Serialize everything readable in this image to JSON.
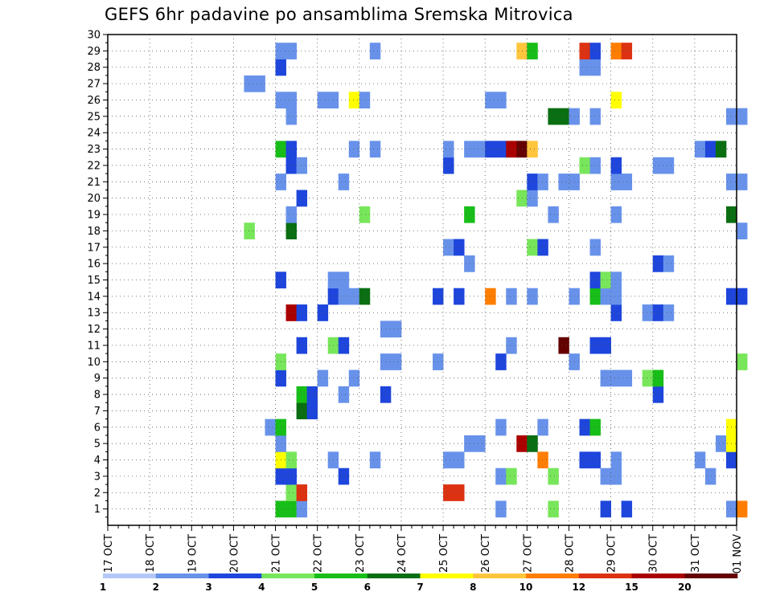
{
  "chart_data": {
    "type": "heatmap",
    "title": "GEFS 6hr padavine po ansamblima Sremska Mitrovica",
    "x_tick_labels": [
      "17 OCT",
      "18 OCT",
      "19 OCT",
      "20 OCT",
      "21 OCT",
      "22 OCT",
      "23 OCT",
      "24 OCT",
      "25 OCT",
      "26 OCT",
      "27 OCT",
      "28 OCT",
      "29 OCT",
      "30 OCT",
      "31 OCT",
      "01 NOV"
    ],
    "y_tick_labels": [
      "1",
      "2",
      "3",
      "4",
      "5",
      "6",
      "7",
      "8",
      "9",
      "10",
      "11",
      "12",
      "13",
      "14",
      "15",
      "16",
      "17",
      "18",
      "19",
      "20",
      "21",
      "22",
      "23",
      "24",
      "25",
      "26",
      "27",
      "28",
      "29",
      "30"
    ],
    "y_range": [
      0,
      30
    ],
    "x_range_days": [
      0,
      15
    ],
    "steps_per_day": 4,
    "grid": true,
    "legend_position": "bottom",
    "legend_thresholds": [
      1,
      2,
      3,
      4,
      5,
      6,
      7,
      8,
      10,
      12,
      15,
      20
    ],
    "legend_labels": [
      "1",
      "2",
      "3",
      "4",
      "5",
      "6",
      "7",
      "8",
      "10",
      "12",
      "15",
      "20"
    ],
    "colors": [
      "#b4c8f8",
      "#6892ea",
      "#1e46dc",
      "#78e65a",
      "#18be18",
      "#0a6e12",
      "#ffff00",
      "#ffc53c",
      "#ff7e00",
      "#dc3212",
      "#aa0000",
      "#640000"
    ],
    "cells": [
      [
        1,
        16,
        4
      ],
      [
        1,
        17,
        4
      ],
      [
        1,
        18,
        1
      ],
      [
        1,
        37,
        1
      ],
      [
        1,
        42,
        3
      ],
      [
        1,
        47,
        2
      ],
      [
        1,
        49,
        2
      ],
      [
        1,
        59,
        1
      ],
      [
        1,
        60,
        8
      ],
      [
        2,
        17,
        3
      ],
      [
        2,
        18,
        9
      ],
      [
        2,
        32,
        9
      ],
      [
        2,
        33,
        9
      ],
      [
        3,
        16,
        2
      ],
      [
        3,
        17,
        2
      ],
      [
        3,
        22,
        2
      ],
      [
        3,
        37,
        1
      ],
      [
        3,
        38,
        3
      ],
      [
        3,
        42,
        3
      ],
      [
        3,
        47,
        1
      ],
      [
        3,
        48,
        1
      ],
      [
        3,
        57,
        1
      ],
      [
        4,
        16,
        6
      ],
      [
        4,
        17,
        3
      ],
      [
        4,
        21,
        1
      ],
      [
        4,
        25,
        1
      ],
      [
        4,
        32,
        1
      ],
      [
        4,
        33,
        1
      ],
      [
        4,
        41,
        8
      ],
      [
        4,
        45,
        2
      ],
      [
        4,
        46,
        2
      ],
      [
        4,
        48,
        1
      ],
      [
        4,
        56,
        1
      ],
      [
        4,
        59,
        2
      ],
      [
        5,
        16,
        1
      ],
      [
        5,
        34,
        1
      ],
      [
        5,
        35,
        1
      ],
      [
        5,
        39,
        10
      ],
      [
        5,
        40,
        5
      ],
      [
        5,
        58,
        1
      ],
      [
        5,
        59,
        6
      ],
      [
        6,
        15,
        1
      ],
      [
        6,
        16,
        4
      ],
      [
        6,
        37,
        1
      ],
      [
        6,
        41,
        1
      ],
      [
        6,
        45,
        2
      ],
      [
        6,
        46,
        4
      ],
      [
        6,
        59,
        6
      ],
      [
        7,
        18,
        5
      ],
      [
        7,
        19,
        2
      ],
      [
        8,
        18,
        4
      ],
      [
        8,
        19,
        2
      ],
      [
        8,
        22,
        1
      ],
      [
        8,
        26,
        2
      ],
      [
        8,
        52,
        2
      ],
      [
        9,
        16,
        2
      ],
      [
        9,
        20,
        1
      ],
      [
        9,
        23,
        1
      ],
      [
        9,
        47,
        1
      ],
      [
        9,
        48,
        1
      ],
      [
        9,
        49,
        1
      ],
      [
        9,
        51,
        3
      ],
      [
        9,
        52,
        4
      ],
      [
        10,
        16,
        3
      ],
      [
        10,
        26,
        1
      ],
      [
        10,
        27,
        1
      ],
      [
        10,
        31,
        1
      ],
      [
        10,
        37,
        2
      ],
      [
        10,
        44,
        1
      ],
      [
        10,
        60,
        3
      ],
      [
        11,
        18,
        2
      ],
      [
        11,
        21,
        3
      ],
      [
        11,
        22,
        2
      ],
      [
        11,
        38,
        1
      ],
      [
        11,
        43,
        11
      ],
      [
        11,
        46,
        2
      ],
      [
        11,
        47,
        2
      ],
      [
        12,
        26,
        1
      ],
      [
        12,
        27,
        1
      ],
      [
        13,
        17,
        10
      ],
      [
        13,
        18,
        2
      ],
      [
        13,
        20,
        2
      ],
      [
        13,
        48,
        2
      ],
      [
        13,
        51,
        1
      ],
      [
        13,
        52,
        2
      ],
      [
        13,
        53,
        1
      ],
      [
        14,
        21,
        2
      ],
      [
        14,
        22,
        1
      ],
      [
        14,
        23,
        1
      ],
      [
        14,
        24,
        5
      ],
      [
        14,
        31,
        2
      ],
      [
        14,
        33,
        2
      ],
      [
        14,
        36,
        8
      ],
      [
        14,
        38,
        1
      ],
      [
        14,
        40,
        1
      ],
      [
        14,
        44,
        1
      ],
      [
        14,
        46,
        4
      ],
      [
        14,
        47,
        1
      ],
      [
        14,
        48,
        1
      ],
      [
        14,
        59,
        2
      ],
      [
        14,
        60,
        2
      ],
      [
        15,
        16,
        2
      ],
      [
        15,
        21,
        1
      ],
      [
        15,
        22,
        1
      ],
      [
        15,
        46,
        2
      ],
      [
        15,
        47,
        3
      ],
      [
        15,
        48,
        1
      ],
      [
        16,
        34,
        1
      ],
      [
        16,
        52,
        2
      ],
      [
        16,
        53,
        1
      ],
      [
        17,
        32,
        1
      ],
      [
        17,
        33,
        2
      ],
      [
        17,
        40,
        3
      ],
      [
        17,
        41,
        2
      ],
      [
        17,
        46,
        1
      ],
      [
        18,
        13,
        3
      ],
      [
        18,
        17,
        5
      ],
      [
        18,
        60,
        1
      ],
      [
        19,
        17,
        1
      ],
      [
        19,
        24,
        3
      ],
      [
        19,
        34,
        4
      ],
      [
        19,
        42,
        1
      ],
      [
        19,
        48,
        1
      ],
      [
        19,
        59,
        5
      ],
      [
        20,
        18,
        2
      ],
      [
        20,
        39,
        3
      ],
      [
        20,
        40,
        1
      ],
      [
        21,
        16,
        1
      ],
      [
        21,
        22,
        1
      ],
      [
        21,
        40,
        2
      ],
      [
        21,
        41,
        1
      ],
      [
        21,
        43,
        1
      ],
      [
        21,
        44,
        1
      ],
      [
        21,
        48,
        1
      ],
      [
        21,
        49,
        1
      ],
      [
        21,
        59,
        1
      ],
      [
        21,
        60,
        1
      ],
      [
        22,
        17,
        2
      ],
      [
        22,
        18,
        1
      ],
      [
        22,
        32,
        2
      ],
      [
        22,
        45,
        3
      ],
      [
        22,
        46,
        1
      ],
      [
        22,
        48,
        2
      ],
      [
        22,
        52,
        1
      ],
      [
        22,
        53,
        1
      ],
      [
        23,
        16,
        4
      ],
      [
        23,
        17,
        2
      ],
      [
        23,
        23,
        1
      ],
      [
        23,
        25,
        1
      ],
      [
        23,
        32,
        1
      ],
      [
        23,
        34,
        1
      ],
      [
        23,
        35,
        1
      ],
      [
        23,
        36,
        2
      ],
      [
        23,
        37,
        2
      ],
      [
        23,
        38,
        10
      ],
      [
        23,
        39,
        11
      ],
      [
        23,
        40,
        7
      ],
      [
        23,
        56,
        1
      ],
      [
        23,
        57,
        2
      ],
      [
        23,
        58,
        5
      ],
      [
        25,
        17,
        1
      ],
      [
        25,
        42,
        5
      ],
      [
        25,
        43,
        5
      ],
      [
        25,
        44,
        1
      ],
      [
        25,
        46,
        1
      ],
      [
        25,
        59,
        1
      ],
      [
        25,
        60,
        1
      ],
      [
        26,
        16,
        1
      ],
      [
        26,
        17,
        1
      ],
      [
        26,
        20,
        1
      ],
      [
        26,
        21,
        1
      ],
      [
        26,
        23,
        6
      ],
      [
        26,
        24,
        1
      ],
      [
        26,
        36,
        1
      ],
      [
        26,
        37,
        1
      ],
      [
        26,
        48,
        6
      ],
      [
        27,
        13,
        1
      ],
      [
        27,
        14,
        1
      ],
      [
        28,
        16,
        2
      ],
      [
        28,
        45,
        1
      ],
      [
        28,
        46,
        1
      ],
      [
        29,
        16,
        1
      ],
      [
        29,
        17,
        1
      ],
      [
        29,
        25,
        1
      ],
      [
        29,
        39,
        7
      ],
      [
        29,
        40,
        4
      ],
      [
        29,
        45,
        9
      ],
      [
        29,
        46,
        2
      ],
      [
        29,
        48,
        8
      ],
      [
        29,
        49,
        9
      ]
    ]
  }
}
